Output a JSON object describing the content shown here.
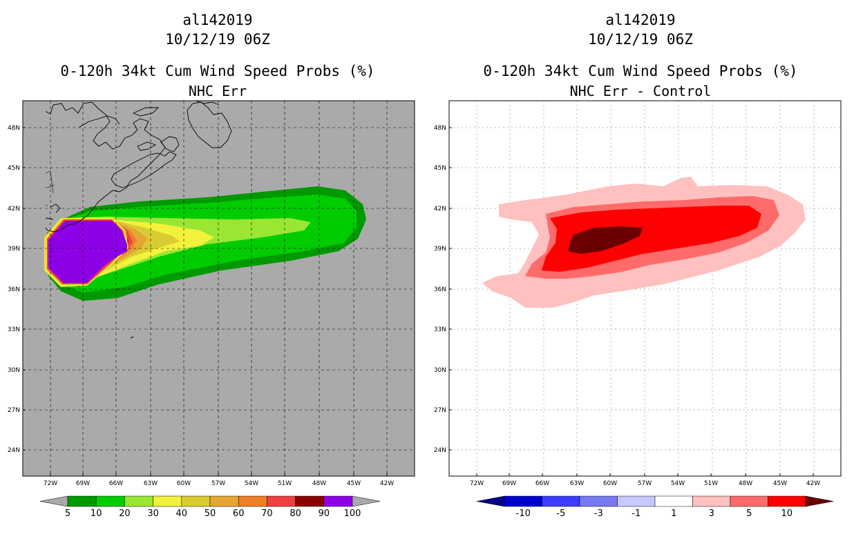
{
  "left_panel": {
    "storm_id": "al142019",
    "datetime": "10/12/19 06Z",
    "product": "0-120h 34kt Cum Wind Speed Probs (%)",
    "subtitle": "NHC Err",
    "colorbar": {
      "colors": [
        "#009900",
        "#00cc00",
        "#99e633",
        "#f2f23d",
        "#d9cc33",
        "#e6a633",
        "#ee7e29",
        "#ee4040",
        "#8b0000",
        "#8e00e6"
      ],
      "labels": [
        "5",
        "10",
        "20",
        "30",
        "40",
        "50",
        "60",
        "70",
        "80",
        "90",
        "100"
      ],
      "under_color": "#aaaaaa",
      "over_color": "#aaaaaa"
    },
    "background_color": "#aaaaaa"
  },
  "right_panel": {
    "storm_id": "al142019",
    "datetime": "10/12/19 06Z",
    "product": "0-120h 34kt Cum Wind Speed Probs (%)",
    "subtitle": "NHC Err - Control",
    "colorbar": {
      "colors": [
        "#0000cc",
        "#3c3cff",
        "#7878f0",
        "#c8c8ff",
        "#ffffff",
        "#ffc0c0",
        "#ff6b6b",
        "#ff0000"
      ],
      "labels": [
        "-10",
        "-5",
        "-3",
        "-1",
        "1",
        "3",
        "5",
        "10"
      ],
      "under_color": "#00008b",
      "over_color": "#6b0000"
    },
    "background_color": "#ffffff"
  },
  "axes": {
    "lat_labels": [
      "48N",
      "45N",
      "42N",
      "39N",
      "36N",
      "33N",
      "30N",
      "27N",
      "24N"
    ],
    "lon_labels": [
      "72W",
      "69W",
      "66W",
      "63W",
      "60W",
      "57W",
      "54W",
      "51W",
      "48W",
      "45W",
      "42W"
    ]
  }
}
